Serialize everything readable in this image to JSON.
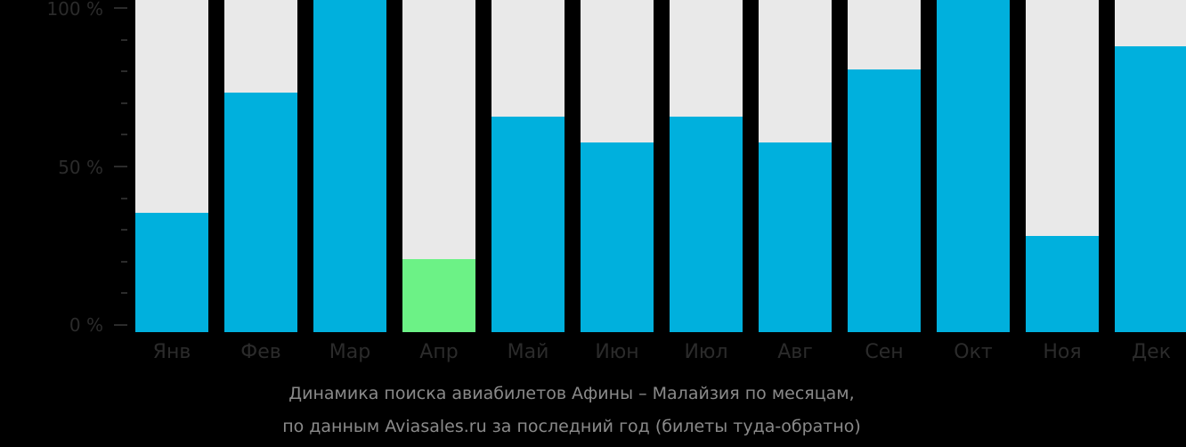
{
  "chart_data": {
    "type": "bar",
    "title": "Динамика поиска авиабилетов Афины – Малайзия по месяцам,",
    "subtitle": "по данным Aviasales.ru за последний год (билеты туда-обратно)",
    "xlabel": "",
    "ylabel": "",
    "ylim": [
      0,
      100
    ],
    "yticks": [
      "0 %",
      "50 %",
      "100 %"
    ],
    "categories": [
      "Янв",
      "Фев",
      "Мар",
      "Апр",
      "Май",
      "Июн",
      "Июл",
      "Авг",
      "Сен",
      "Окт",
      "Ноя",
      "Дек"
    ],
    "values": [
      36,
      72,
      100,
      22,
      65,
      57,
      65,
      57,
      79,
      100,
      29,
      86
    ],
    "highlight_index": 3,
    "colors": {
      "bar": "#00b0dd",
      "highlight": "#6cf286",
      "background_bar": "#e9e9e9",
      "page": "#000000"
    }
  }
}
